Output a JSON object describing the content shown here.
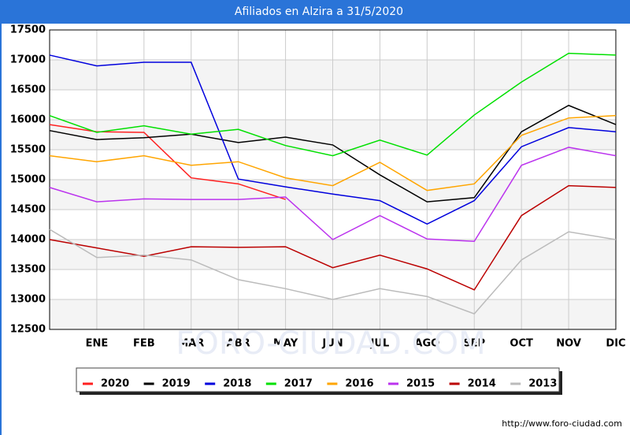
{
  "chart_data": {
    "type": "line",
    "title": "Afiliados en Alzira a 31/5/2020",
    "categories": [
      null,
      "ENE",
      "FEB",
      "MAR",
      "ABR",
      "MAY",
      "JUN",
      "JUL",
      "AGO",
      "SEP",
      "OCT",
      "NOV",
      "DIC"
    ],
    "ylim": [
      12500,
      17500
    ],
    "yticks": [
      12500,
      13000,
      13500,
      14000,
      14500,
      15000,
      15500,
      16000,
      16500,
      17000,
      17500
    ],
    "grid": true,
    "series": [
      {
        "name": "2020",
        "color": "#ff2020",
        "values": [
          15920,
          15800,
          15790,
          15030,
          14930,
          14670,
          null,
          null,
          null,
          null,
          null,
          null,
          null
        ]
      },
      {
        "name": "2019",
        "color": "#000000",
        "values": [
          15820,
          15670,
          15700,
          15760,
          15620,
          15710,
          15580,
          15080,
          14630,
          14700,
          15800,
          16240,
          15920
        ]
      },
      {
        "name": "2018",
        "color": "#0000dd",
        "values": [
          17080,
          16900,
          16960,
          16960,
          15010,
          14880,
          14760,
          14650,
          14260,
          14650,
          15550,
          15870,
          15800
        ]
      },
      {
        "name": "2017",
        "color": "#00e000",
        "values": [
          16070,
          15790,
          15900,
          15760,
          15840,
          15570,
          15400,
          15660,
          15410,
          16080,
          16630,
          17110,
          17080
        ]
      },
      {
        "name": "2016",
        "color": "#ffa500",
        "values": [
          15400,
          15300,
          15400,
          15240,
          15300,
          15030,
          14900,
          15290,
          14820,
          14930,
          15740,
          16030,
          16070
        ]
      },
      {
        "name": "2015",
        "color": "#bb33ee",
        "values": [
          14870,
          14630,
          14680,
          14670,
          14670,
          14710,
          14000,
          14400,
          14010,
          13970,
          15240,
          15540,
          15400
        ]
      },
      {
        "name": "2014",
        "color": "#bb0000",
        "values": [
          14000,
          13860,
          13720,
          13880,
          13870,
          13880,
          13530,
          13740,
          13510,
          13160,
          14400,
          14900,
          14870
        ]
      },
      {
        "name": "2013",
        "color": "#bbbbbb",
        "values": [
          14170,
          13700,
          13740,
          13660,
          13330,
          13180,
          13000,
          13180,
          13050,
          12760,
          13660,
          14130,
          14000
        ]
      }
    ],
    "watermark": "FORO-CIUDAD.COM",
    "footer": "http://www.foro-ciudad.com"
  }
}
